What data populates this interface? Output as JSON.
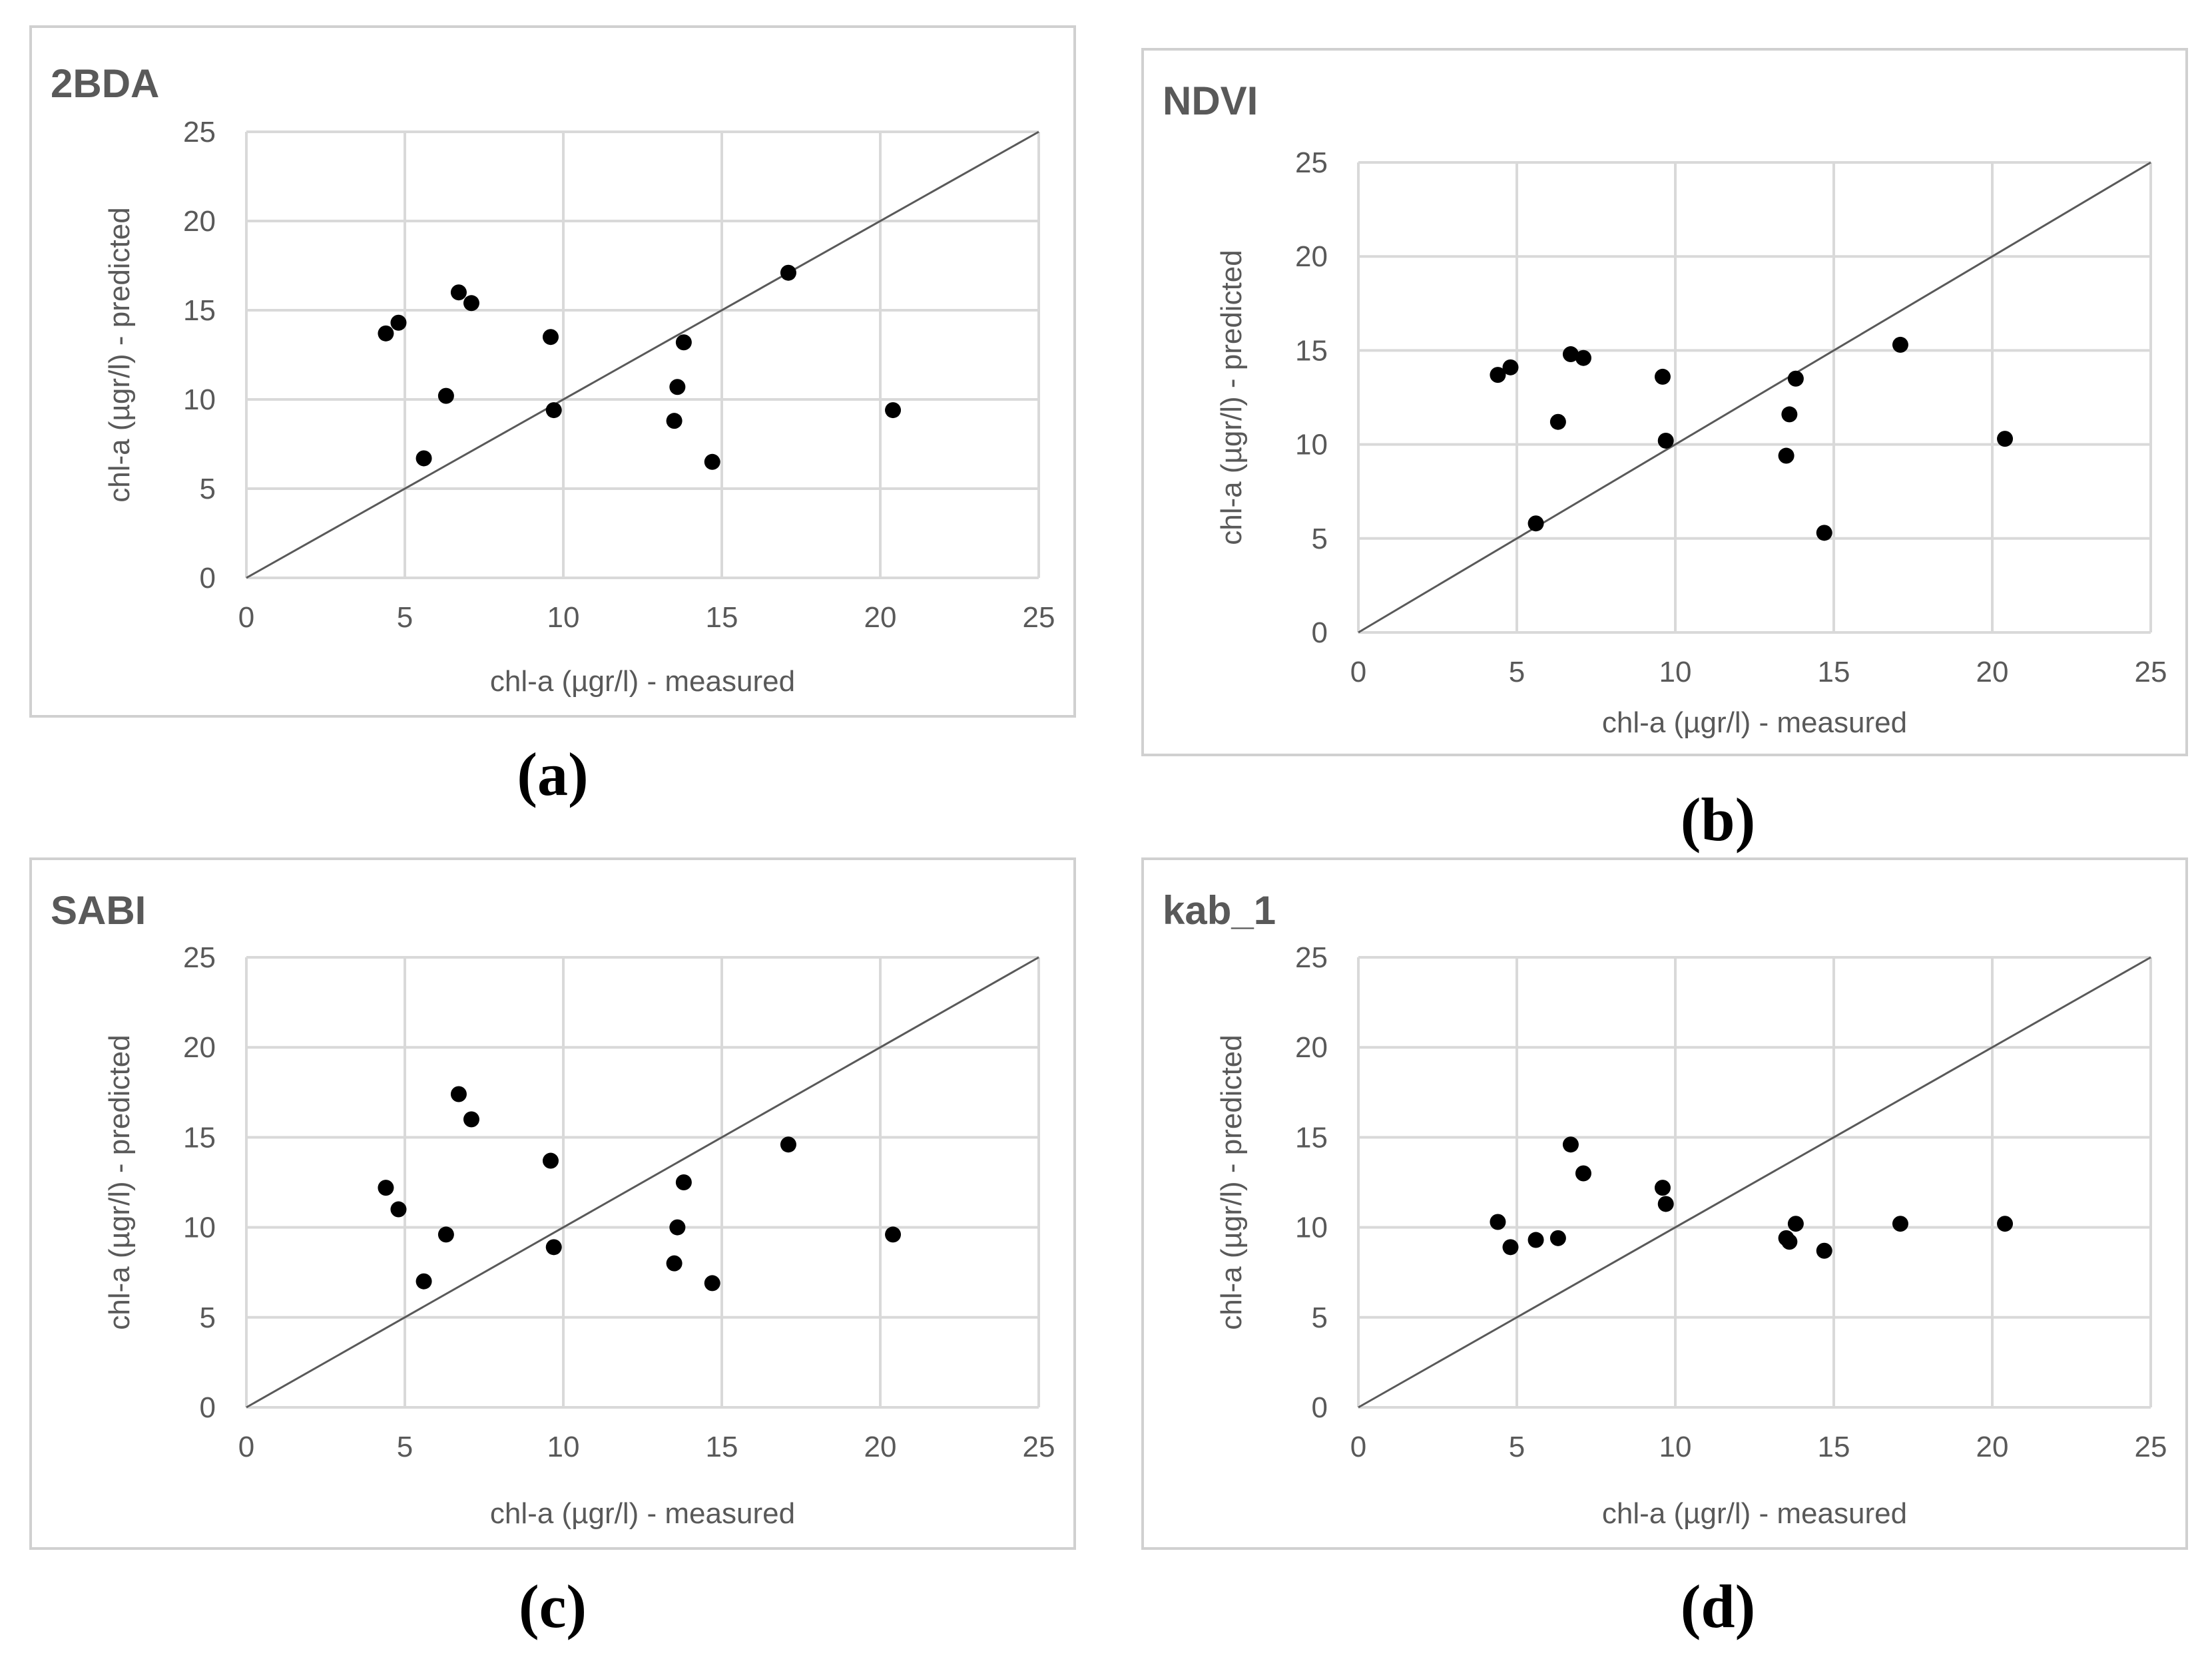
{
  "chart_data": [
    {
      "type": "scatter",
      "title": "2BDA",
      "xlabel": "chl-a (µgr/l) - measured",
      "ylabel": "chl-a (µgr/l) - predicted",
      "xlim": [
        0,
        25
      ],
      "ylim": [
        0,
        25
      ],
      "xticks": [
        "0",
        "5",
        "10",
        "15",
        "20",
        "25"
      ],
      "yticks": [
        "0",
        "5",
        "10",
        "15",
        "20",
        "25"
      ],
      "reference_line": "1:1",
      "caption": "(a)",
      "points": [
        [
          4.4,
          13.7
        ],
        [
          4.8,
          14.3
        ],
        [
          5.6,
          6.7
        ],
        [
          6.3,
          10.2
        ],
        [
          6.7,
          16.0
        ],
        [
          7.1,
          15.4
        ],
        [
          9.6,
          13.5
        ],
        [
          9.7,
          9.4
        ],
        [
          13.5,
          8.8
        ],
        [
          13.6,
          10.7
        ],
        [
          13.8,
          13.2
        ],
        [
          14.7,
          6.5
        ],
        [
          17.1,
          17.1
        ],
        [
          20.4,
          9.4
        ]
      ]
    },
    {
      "type": "scatter",
      "title": "NDVI",
      "xlabel": "chl-a (µgr/l) - measured",
      "ylabel": "chl-a (µgr/l) - predicted",
      "xlim": [
        0,
        25
      ],
      "ylim": [
        0,
        25
      ],
      "xticks": [
        "0",
        "5",
        "10",
        "15",
        "20",
        "25"
      ],
      "yticks": [
        "0",
        "5",
        "10",
        "15",
        "20",
        "25"
      ],
      "reference_line": "1:1",
      "caption": "(b)",
      "points": [
        [
          4.4,
          13.7
        ],
        [
          4.8,
          14.1
        ],
        [
          5.6,
          5.8
        ],
        [
          6.3,
          11.2
        ],
        [
          6.7,
          14.8
        ],
        [
          7.1,
          14.6
        ],
        [
          9.6,
          13.6
        ],
        [
          9.7,
          10.2
        ],
        [
          13.5,
          9.4
        ],
        [
          13.6,
          11.6
        ],
        [
          13.8,
          13.5
        ],
        [
          14.7,
          5.3
        ],
        [
          17.1,
          15.3
        ],
        [
          20.4,
          10.3
        ]
      ]
    },
    {
      "type": "scatter",
      "title": "SABI",
      "xlabel": "chl-a (µgr/l) - measured",
      "ylabel": "chl-a (µgr/l) - predicted",
      "xlim": [
        0,
        25
      ],
      "ylim": [
        0,
        25
      ],
      "xticks": [
        "0",
        "5",
        "10",
        "15",
        "20",
        "25"
      ],
      "yticks": [
        "0",
        "5",
        "10",
        "15",
        "20",
        "25"
      ],
      "reference_line": "1:1",
      "caption": "(c)",
      "points": [
        [
          4.4,
          12.2
        ],
        [
          4.8,
          11.0
        ],
        [
          5.6,
          7.0
        ],
        [
          6.3,
          9.6
        ],
        [
          6.7,
          17.4
        ],
        [
          7.1,
          16.0
        ],
        [
          9.6,
          13.7
        ],
        [
          9.7,
          8.9
        ],
        [
          13.5,
          8.0
        ],
        [
          13.6,
          10.0
        ],
        [
          13.8,
          12.5
        ],
        [
          14.7,
          6.9
        ],
        [
          17.1,
          14.6
        ],
        [
          20.4,
          9.6
        ]
      ]
    },
    {
      "type": "scatter",
      "title": "kab_1",
      "xlabel": "chl-a (µgr/l) - measured",
      "ylabel": "chl-a (µgr/l) - predicted",
      "xlim": [
        0,
        25
      ],
      "ylim": [
        0,
        25
      ],
      "xticks": [
        "0",
        "5",
        "10",
        "15",
        "20",
        "25"
      ],
      "yticks": [
        "0",
        "5",
        "10",
        "15",
        "20",
        "25"
      ],
      "reference_line": "1:1",
      "caption": "(d)",
      "points": [
        [
          4.4,
          10.3
        ],
        [
          4.8,
          8.9
        ],
        [
          5.6,
          9.3
        ],
        [
          6.3,
          9.4
        ],
        [
          6.7,
          14.6
        ],
        [
          7.1,
          13.0
        ],
        [
          9.6,
          12.2
        ],
        [
          9.7,
          11.3
        ],
        [
          13.5,
          9.4
        ],
        [
          13.6,
          9.2
        ],
        [
          13.8,
          10.2
        ],
        [
          14.7,
          8.7
        ],
        [
          17.1,
          10.2
        ],
        [
          20.4,
          10.2
        ]
      ]
    }
  ]
}
